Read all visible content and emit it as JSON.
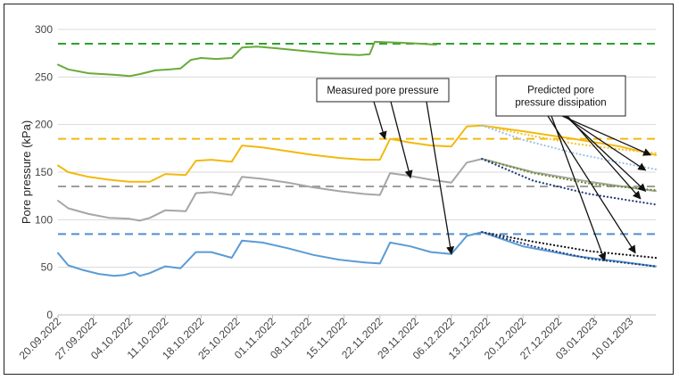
{
  "chart_data": {
    "type": "line",
    "ylabel": "Pore pressure (kPa)",
    "xlabel": "",
    "ylim": [
      0,
      300
    ],
    "yticks": [
      0,
      50,
      100,
      150,
      200,
      250,
      300
    ],
    "xlim": [
      "2022-09-20",
      "2023-01-15"
    ],
    "xticks": [
      "20.09.2022",
      "27.09.2022",
      "04.10.2022",
      "11.10.2022",
      "18.10.2022",
      "25.10.2022",
      "01.11.2022",
      "08.11.2022",
      "15.11.2022",
      "22.11.2022",
      "29.11.2022",
      "06.12.2022",
      "13.12.2022",
      "20.12.2022",
      "27.12.2022",
      "03.01.2023",
      "10.01.2023"
    ],
    "grid": "horizontal",
    "reference_lines": [
      {
        "value": 285,
        "color": "#2ca02c"
      },
      {
        "value": 185,
        "color": "#f2b90f"
      },
      {
        "value": 135,
        "color": "#9e9e9e"
      },
      {
        "value": 85,
        "color": "#4f8fd0"
      }
    ],
    "series": [
      {
        "color": "#6aaa3a",
        "style": "solid",
        "points": [
          [
            "2022-09-20",
            263
          ],
          [
            "2022-09-22",
            258
          ],
          [
            "2022-09-26",
            254
          ],
          [
            "2022-09-29",
            253
          ],
          [
            "2022-10-02",
            252
          ],
          [
            "2022-10-04",
            251
          ],
          [
            "2022-10-06",
            253
          ],
          [
            "2022-10-09",
            257
          ],
          [
            "2022-10-12",
            258
          ],
          [
            "2022-10-14",
            259
          ],
          [
            "2022-10-16",
            268
          ],
          [
            "2022-10-18",
            270
          ],
          [
            "2022-10-21",
            269
          ],
          [
            "2022-10-24",
            270
          ],
          [
            "2022-10-26",
            281
          ],
          [
            "2022-10-29",
            282
          ],
          [
            "2022-11-02",
            280
          ],
          [
            "2022-11-06",
            278
          ],
          [
            "2022-11-10",
            276
          ],
          [
            "2022-11-14",
            274
          ],
          [
            "2022-11-18",
            273
          ],
          [
            "2022-11-20",
            274
          ],
          [
            "2022-11-21",
            287
          ],
          [
            "2022-11-26",
            286
          ],
          [
            "2022-11-30",
            285
          ],
          [
            "2022-12-03",
            284
          ]
        ]
      },
      {
        "color": "#f2b90f",
        "style": "solid",
        "points": [
          [
            "2022-09-20",
            157
          ],
          [
            "2022-09-22",
            150
          ],
          [
            "2022-09-26",
            145
          ],
          [
            "2022-09-30",
            142
          ],
          [
            "2022-10-04",
            140
          ],
          [
            "2022-10-08",
            140
          ],
          [
            "2022-10-11",
            148
          ],
          [
            "2022-10-15",
            147
          ],
          [
            "2022-10-17",
            162
          ],
          [
            "2022-10-20",
            163
          ],
          [
            "2022-10-24",
            161
          ],
          [
            "2022-10-26",
            178
          ],
          [
            "2022-10-30",
            176
          ],
          [
            "2022-11-04",
            172
          ],
          [
            "2022-11-09",
            168
          ],
          [
            "2022-11-14",
            165
          ],
          [
            "2022-11-19",
            163
          ],
          [
            "2022-11-22",
            163
          ],
          [
            "2022-11-24",
            185
          ],
          [
            "2022-11-28",
            181
          ],
          [
            "2022-12-02",
            178
          ],
          [
            "2022-12-06",
            177
          ],
          [
            "2022-12-09",
            198
          ],
          [
            "2022-12-12",
            199
          ],
          [
            "2022-12-20",
            193
          ],
          [
            "2022-12-30",
            185
          ],
          [
            "2023-01-08",
            177
          ],
          [
            "2023-01-15",
            168
          ]
        ]
      },
      {
        "color": "#a6a6a6",
        "style": "solid",
        "points": [
          [
            "2022-09-20",
            120
          ],
          [
            "2022-09-22",
            112
          ],
          [
            "2022-09-26",
            106
          ],
          [
            "2022-09-30",
            102
          ],
          [
            "2022-10-04",
            101
          ],
          [
            "2022-10-06",
            99
          ],
          [
            "2022-10-08",
            102
          ],
          [
            "2022-10-11",
            110
          ],
          [
            "2022-10-15",
            109
          ],
          [
            "2022-10-17",
            128
          ],
          [
            "2022-10-20",
            129
          ],
          [
            "2022-10-24",
            126
          ],
          [
            "2022-10-26",
            145
          ],
          [
            "2022-10-30",
            143
          ],
          [
            "2022-11-04",
            139
          ],
          [
            "2022-11-09",
            134
          ],
          [
            "2022-11-14",
            130
          ],
          [
            "2022-11-19",
            127
          ],
          [
            "2022-11-22",
            126
          ],
          [
            "2022-11-24",
            149
          ],
          [
            "2022-11-28",
            146
          ],
          [
            "2022-12-02",
            142
          ],
          [
            "2022-12-06",
            139
          ],
          [
            "2022-12-09",
            160
          ],
          [
            "2022-12-12",
            164
          ],
          [
            "2022-12-22",
            150
          ],
          [
            "2023-01-02",
            140
          ],
          [
            "2023-01-15",
            130
          ]
        ]
      },
      {
        "color": "#5b9bd5",
        "style": "solid",
        "points": [
          [
            "2022-09-20",
            65
          ],
          [
            "2022-09-22",
            52
          ],
          [
            "2022-09-25",
            47
          ],
          [
            "2022-09-28",
            43
          ],
          [
            "2022-10-01",
            41
          ],
          [
            "2022-10-03",
            42
          ],
          [
            "2022-10-05",
            45
          ],
          [
            "2022-10-06",
            41
          ],
          [
            "2022-10-08",
            44
          ],
          [
            "2022-10-11",
            51
          ],
          [
            "2022-10-14",
            49
          ],
          [
            "2022-10-17",
            66
          ],
          [
            "2022-10-20",
            66
          ],
          [
            "2022-10-24",
            60
          ],
          [
            "2022-10-26",
            78
          ],
          [
            "2022-10-30",
            76
          ],
          [
            "2022-11-04",
            70
          ],
          [
            "2022-11-09",
            63
          ],
          [
            "2022-11-14",
            58
          ],
          [
            "2022-11-19",
            55
          ],
          [
            "2022-11-22",
            54
          ],
          [
            "2022-11-24",
            76
          ],
          [
            "2022-11-28",
            72
          ],
          [
            "2022-12-02",
            66
          ],
          [
            "2022-12-06",
            64
          ],
          [
            "2022-12-09",
            83
          ],
          [
            "2022-12-12",
            87
          ],
          [
            "2022-12-20",
            72
          ],
          [
            "2022-12-30",
            62
          ],
          [
            "2023-01-08",
            56
          ],
          [
            "2023-01-15",
            51
          ]
        ]
      },
      {
        "color": "#f5c332",
        "style": "dotted",
        "points": [
          [
            "2022-12-12",
            199
          ],
          [
            "2022-12-20",
            190
          ],
          [
            "2022-12-30",
            180
          ],
          [
            "2023-01-08",
            174
          ],
          [
            "2023-01-15",
            170
          ]
        ]
      },
      {
        "color": "#9dc3e6",
        "style": "dotted",
        "points": [
          [
            "2022-12-12",
            199
          ],
          [
            "2022-12-20",
            184
          ],
          [
            "2022-12-30",
            170
          ],
          [
            "2023-01-08",
            160
          ],
          [
            "2023-01-15",
            153
          ]
        ]
      },
      {
        "color": "#6b8e23",
        "style": "dotted",
        "points": [
          [
            "2022-12-12",
            164
          ],
          [
            "2022-12-22",
            149
          ],
          [
            "2023-01-02",
            138
          ],
          [
            "2023-01-15",
            131
          ]
        ]
      },
      {
        "color": "#1f3b7a",
        "style": "dotted",
        "points": [
          [
            "2022-12-12",
            164
          ],
          [
            "2022-12-22",
            141
          ],
          [
            "2023-01-02",
            127
          ],
          [
            "2023-01-15",
            116
          ]
        ]
      },
      {
        "color": "#111111",
        "style": "dotted",
        "points": [
          [
            "2022-12-12",
            87
          ],
          [
            "2022-12-22",
            77
          ],
          [
            "2023-01-02",
            67
          ],
          [
            "2023-01-15",
            60
          ]
        ]
      },
      {
        "color": "#1f3b7a",
        "style": "dotted",
        "points": [
          [
            "2022-12-12",
            87
          ],
          [
            "2022-12-22",
            72
          ],
          [
            "2023-01-02",
            59
          ],
          [
            "2023-01-15",
            51
          ]
        ]
      }
    ],
    "annotations": [
      {
        "text": "Measured pore pressure",
        "arrows_to": [
          [
            "2022-11-23",
            185
          ],
          [
            "2022-11-28",
            144
          ],
          [
            "2022-12-06",
            64
          ]
        ]
      },
      {
        "text": [
          "Predicted pore",
          "pressure dissipation"
        ],
        "arrows_to": [
          [
            "2023-01-14",
            168
          ],
          [
            "2023-01-13",
            152
          ],
          [
            "2023-01-13",
            130
          ],
          [
            "2023-01-12",
            122
          ],
          [
            "2023-01-11",
            65
          ],
          [
            "2023-01-05",
            57
          ]
        ]
      }
    ]
  }
}
